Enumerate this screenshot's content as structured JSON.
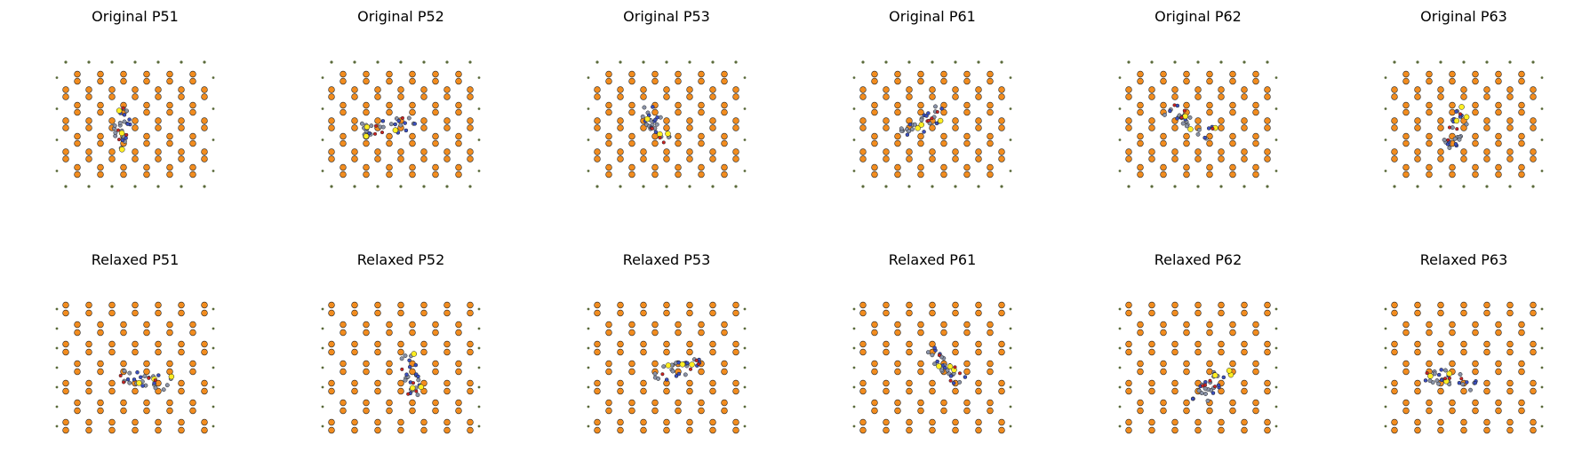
{
  "figure": {
    "panels": [
      {
        "title": "Original P51",
        "row": "original",
        "molecule": "P51"
      },
      {
        "title": "Original P52",
        "row": "original",
        "molecule": "P52"
      },
      {
        "title": "Original P53",
        "row": "original",
        "molecule": "P53"
      },
      {
        "title": "Original P61",
        "row": "original",
        "molecule": "P61"
      },
      {
        "title": "Original P62",
        "row": "original",
        "molecule": "P62"
      },
      {
        "title": "Original P63",
        "row": "original",
        "molecule": "P63"
      },
      {
        "title": "Relaxed P51",
        "row": "relaxed",
        "molecule": "P51"
      },
      {
        "title": "Relaxed P52",
        "row": "relaxed",
        "molecule": "P52"
      },
      {
        "title": "Relaxed P53",
        "row": "relaxed",
        "molecule": "P53"
      },
      {
        "title": "Relaxed P61",
        "row": "relaxed",
        "molecule": "P61"
      },
      {
        "title": "Relaxed P62",
        "row": "relaxed",
        "molecule": "P62"
      },
      {
        "title": "Relaxed P63",
        "row": "relaxed",
        "molecule": "P63"
      }
    ],
    "colors": {
      "lattice_atom": "#f28c1e",
      "atom_edge": "#222222",
      "small_atom": "#5a6a3a",
      "adsorbate_gray": "#8a93a8",
      "adsorbate_blue": "#3a4fc0",
      "adsorbate_yellow": "#ffee22",
      "adsorbate_red": "#cc2222"
    }
  }
}
